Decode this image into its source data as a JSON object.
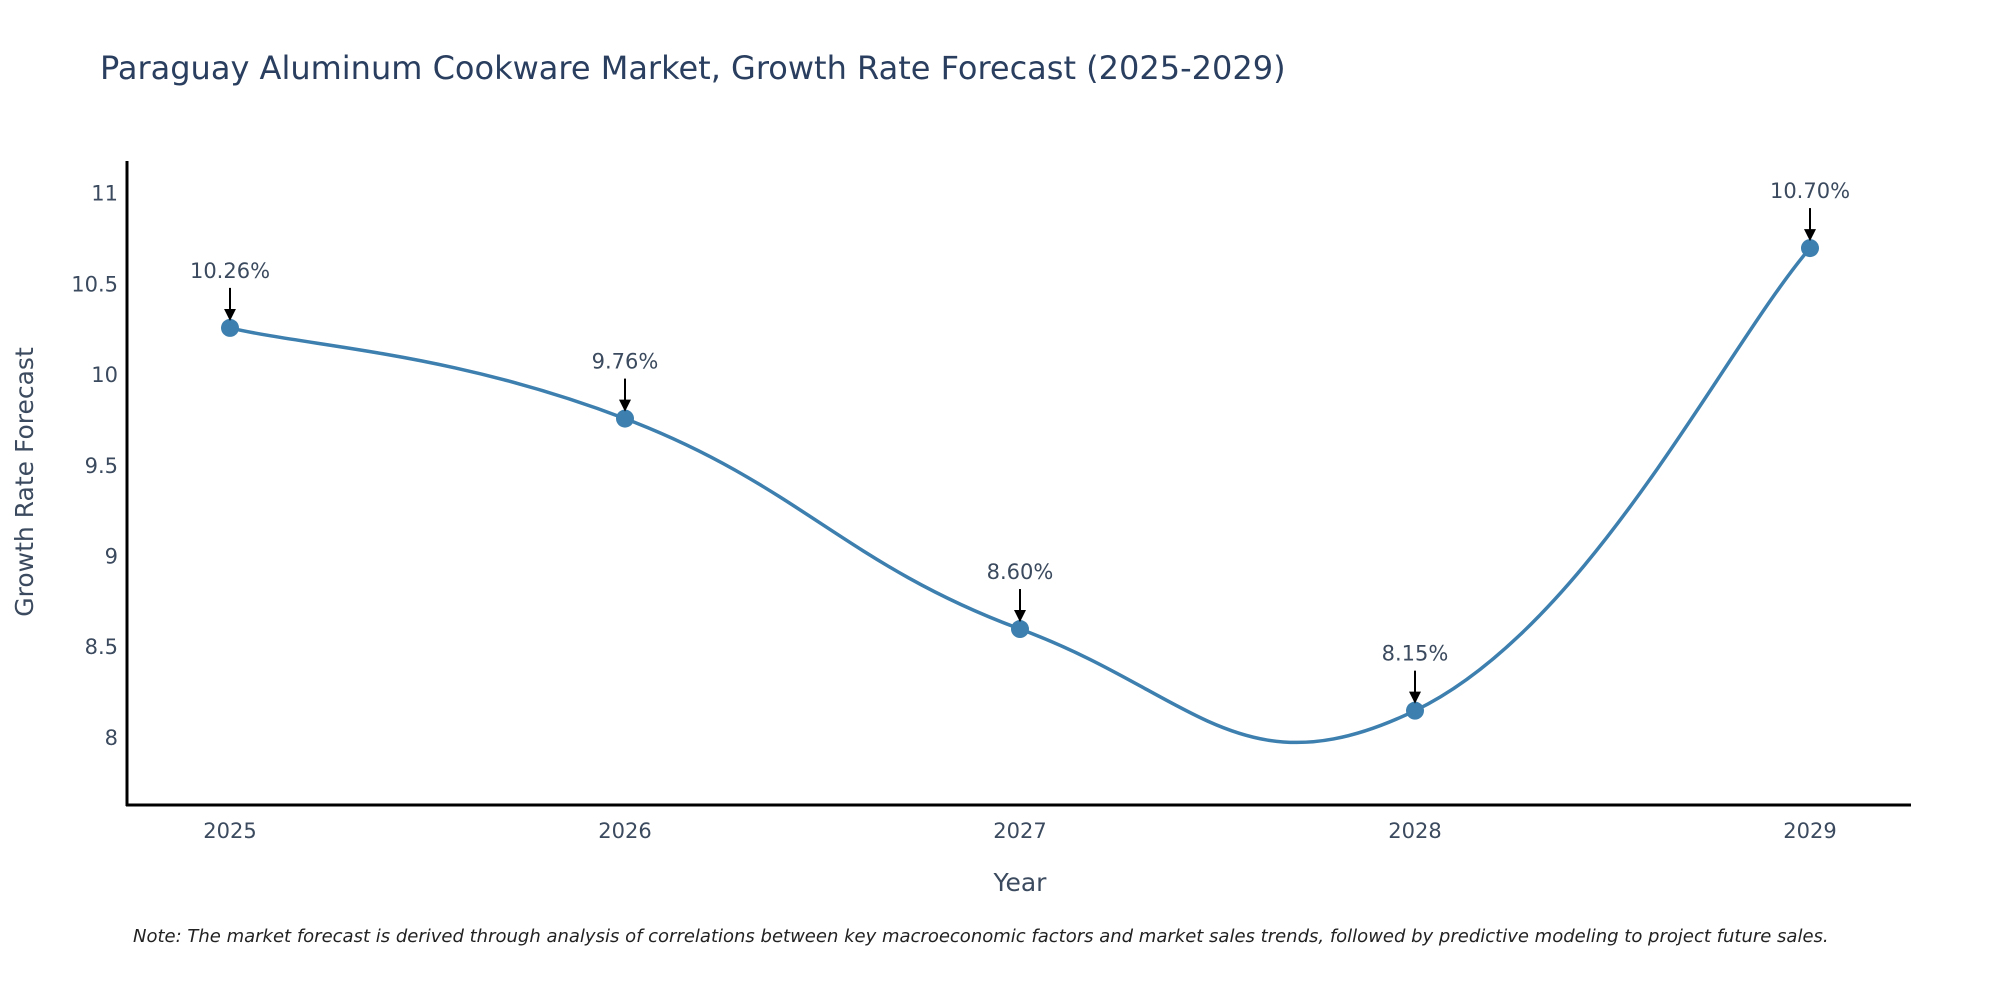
{
  "chart_data": {
    "type": "line",
    "title": "Paraguay Aluminum Cookware Market, Growth Rate Forecast (2025-2029)",
    "xlabel": "Year",
    "ylabel": "Growth Rate Forecast",
    "categories": [
      "2025",
      "2026",
      "2027",
      "2028",
      "2029"
    ],
    "values": [
      10.26,
      9.76,
      8.6,
      8.15,
      10.7
    ],
    "data_labels": [
      "10.26%",
      "9.76%",
      "8.60%",
      "8.15%",
      "10.70%"
    ],
    "ylim": [
      7.63,
      11.18
    ],
    "yticks": [
      8,
      8.5,
      9,
      9.5,
      10,
      10.5,
      11
    ],
    "ytick_labels": [
      "8",
      "8.5",
      "9",
      "9.5",
      "10",
      "10.5",
      "11"
    ],
    "grid": false,
    "line_color": "#3d7fae",
    "marker_color": "#3d7fae"
  },
  "note": "Note: The market forecast is derived through analysis of correlations between key macroeconomic factors and market sales trends, followed by predictive modeling to project future sales."
}
